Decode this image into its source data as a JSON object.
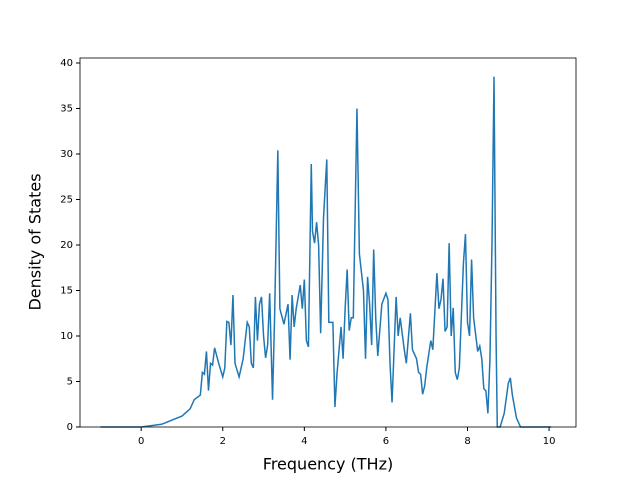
{
  "chart_data": {
    "type": "line",
    "xlabel": "Frequency (THz)",
    "ylabel": "Density of States",
    "x": [
      -1.0,
      0,
      0.5,
      1.0,
      1.2,
      1.3,
      1.45,
      1.5,
      1.55,
      1.6,
      1.65,
      1.7,
      1.75,
      1.8,
      1.9,
      2.0,
      2.05,
      2.1,
      2.15,
      2.2,
      2.25,
      2.3,
      2.4,
      2.5,
      2.6,
      2.65,
      2.7,
      2.75,
      2.8,
      2.85,
      2.9,
      2.95,
      3.0,
      3.05,
      3.1,
      3.15,
      3.22,
      3.27,
      3.35,
      3.4,
      3.5,
      3.6,
      3.65,
      3.7,
      3.75,
      3.8,
      3.9,
      3.95,
      4.0,
      4.05,
      4.1,
      4.17,
      4.2,
      4.25,
      4.3,
      4.35,
      4.4,
      4.47,
      4.55,
      4.6,
      4.7,
      4.75,
      4.8,
      4.9,
      4.95,
      5.0,
      5.05,
      5.1,
      5.15,
      5.2,
      5.29,
      5.35,
      5.45,
      5.5,
      5.55,
      5.6,
      5.65,
      5.7,
      5.75,
      5.8,
      5.9,
      6.0,
      6.05,
      6.1,
      6.15,
      6.25,
      6.3,
      6.35,
      6.45,
      6.5,
      6.6,
      6.65,
      6.75,
      6.8,
      6.85,
      6.9,
      6.95,
      7.0,
      7.1,
      7.15,
      7.25,
      7.3,
      7.35,
      7.4,
      7.45,
      7.5,
      7.55,
      7.6,
      7.65,
      7.7,
      7.75,
      7.8,
      7.9,
      7.95,
      8.0,
      8.05,
      8.1,
      8.15,
      8.25,
      8.3,
      8.35,
      8.4,
      8.45,
      8.5,
      8.55,
      8.6,
      8.65,
      8.7,
      8.73,
      8.8,
      8.9,
      9.0,
      9.05,
      9.1,
      9.2,
      9.3,
      10.05
    ],
    "series": [
      {
        "name": "DOS",
        "color": "#1f77b4",
        "values": [
          0,
          0,
          0.3,
          1.2,
          2,
          3,
          3.5,
          6,
          5.8,
          8.3,
          4,
          7,
          6.8,
          8.7,
          7,
          5.5,
          6.5,
          11.6,
          11.5,
          9,
          14.5,
          7,
          5.5,
          7.5,
          11.5,
          11,
          7,
          6.5,
          14.3,
          9.5,
          13.5,
          14.3,
          10,
          7.6,
          9,
          14.7,
          3,
          12,
          30.4,
          13,
          11.3,
          13.5,
          7.4,
          14.5,
          11,
          13,
          15.6,
          13,
          16.2,
          9.5,
          8.8,
          28.9,
          21.5,
          20.2,
          22.5,
          20,
          10.3,
          23,
          29.4,
          11.5,
          11.5,
          2.2,
          5.8,
          11,
          7.5,
          13,
          17.3,
          10.6,
          12,
          12,
          35,
          19,
          15,
          7.5,
          16.5,
          13.5,
          9,
          19.5,
          12,
          7.8,
          13.5,
          14.7,
          14,
          7,
          2.7,
          14.3,
          10,
          12,
          8.5,
          7,
          12.5,
          8.5,
          7.5,
          6,
          5.8,
          3.6,
          4.5,
          6.5,
          9.5,
          8.5,
          16.9,
          13,
          14,
          16.3,
          10.5,
          11,
          20.2,
          10,
          13.1,
          6,
          5.2,
          6.5,
          18,
          21.2,
          11.5,
          10,
          18.4,
          12,
          8.3,
          8.9,
          7.5,
          4.2,
          4,
          1.5,
          7.4,
          20,
          38.5,
          10,
          0,
          0,
          1.5,
          4.8,
          5.4,
          3.5,
          1,
          0,
          0
        ]
      }
    ],
    "xlim": [
      -1.5,
      10.66
    ],
    "ylim": [
      0,
      40.55
    ],
    "xticks": [
      0,
      2,
      4,
      6,
      8,
      10
    ],
    "yticks": [
      0,
      5,
      10,
      15,
      20,
      25,
      30,
      35,
      40
    ]
  }
}
